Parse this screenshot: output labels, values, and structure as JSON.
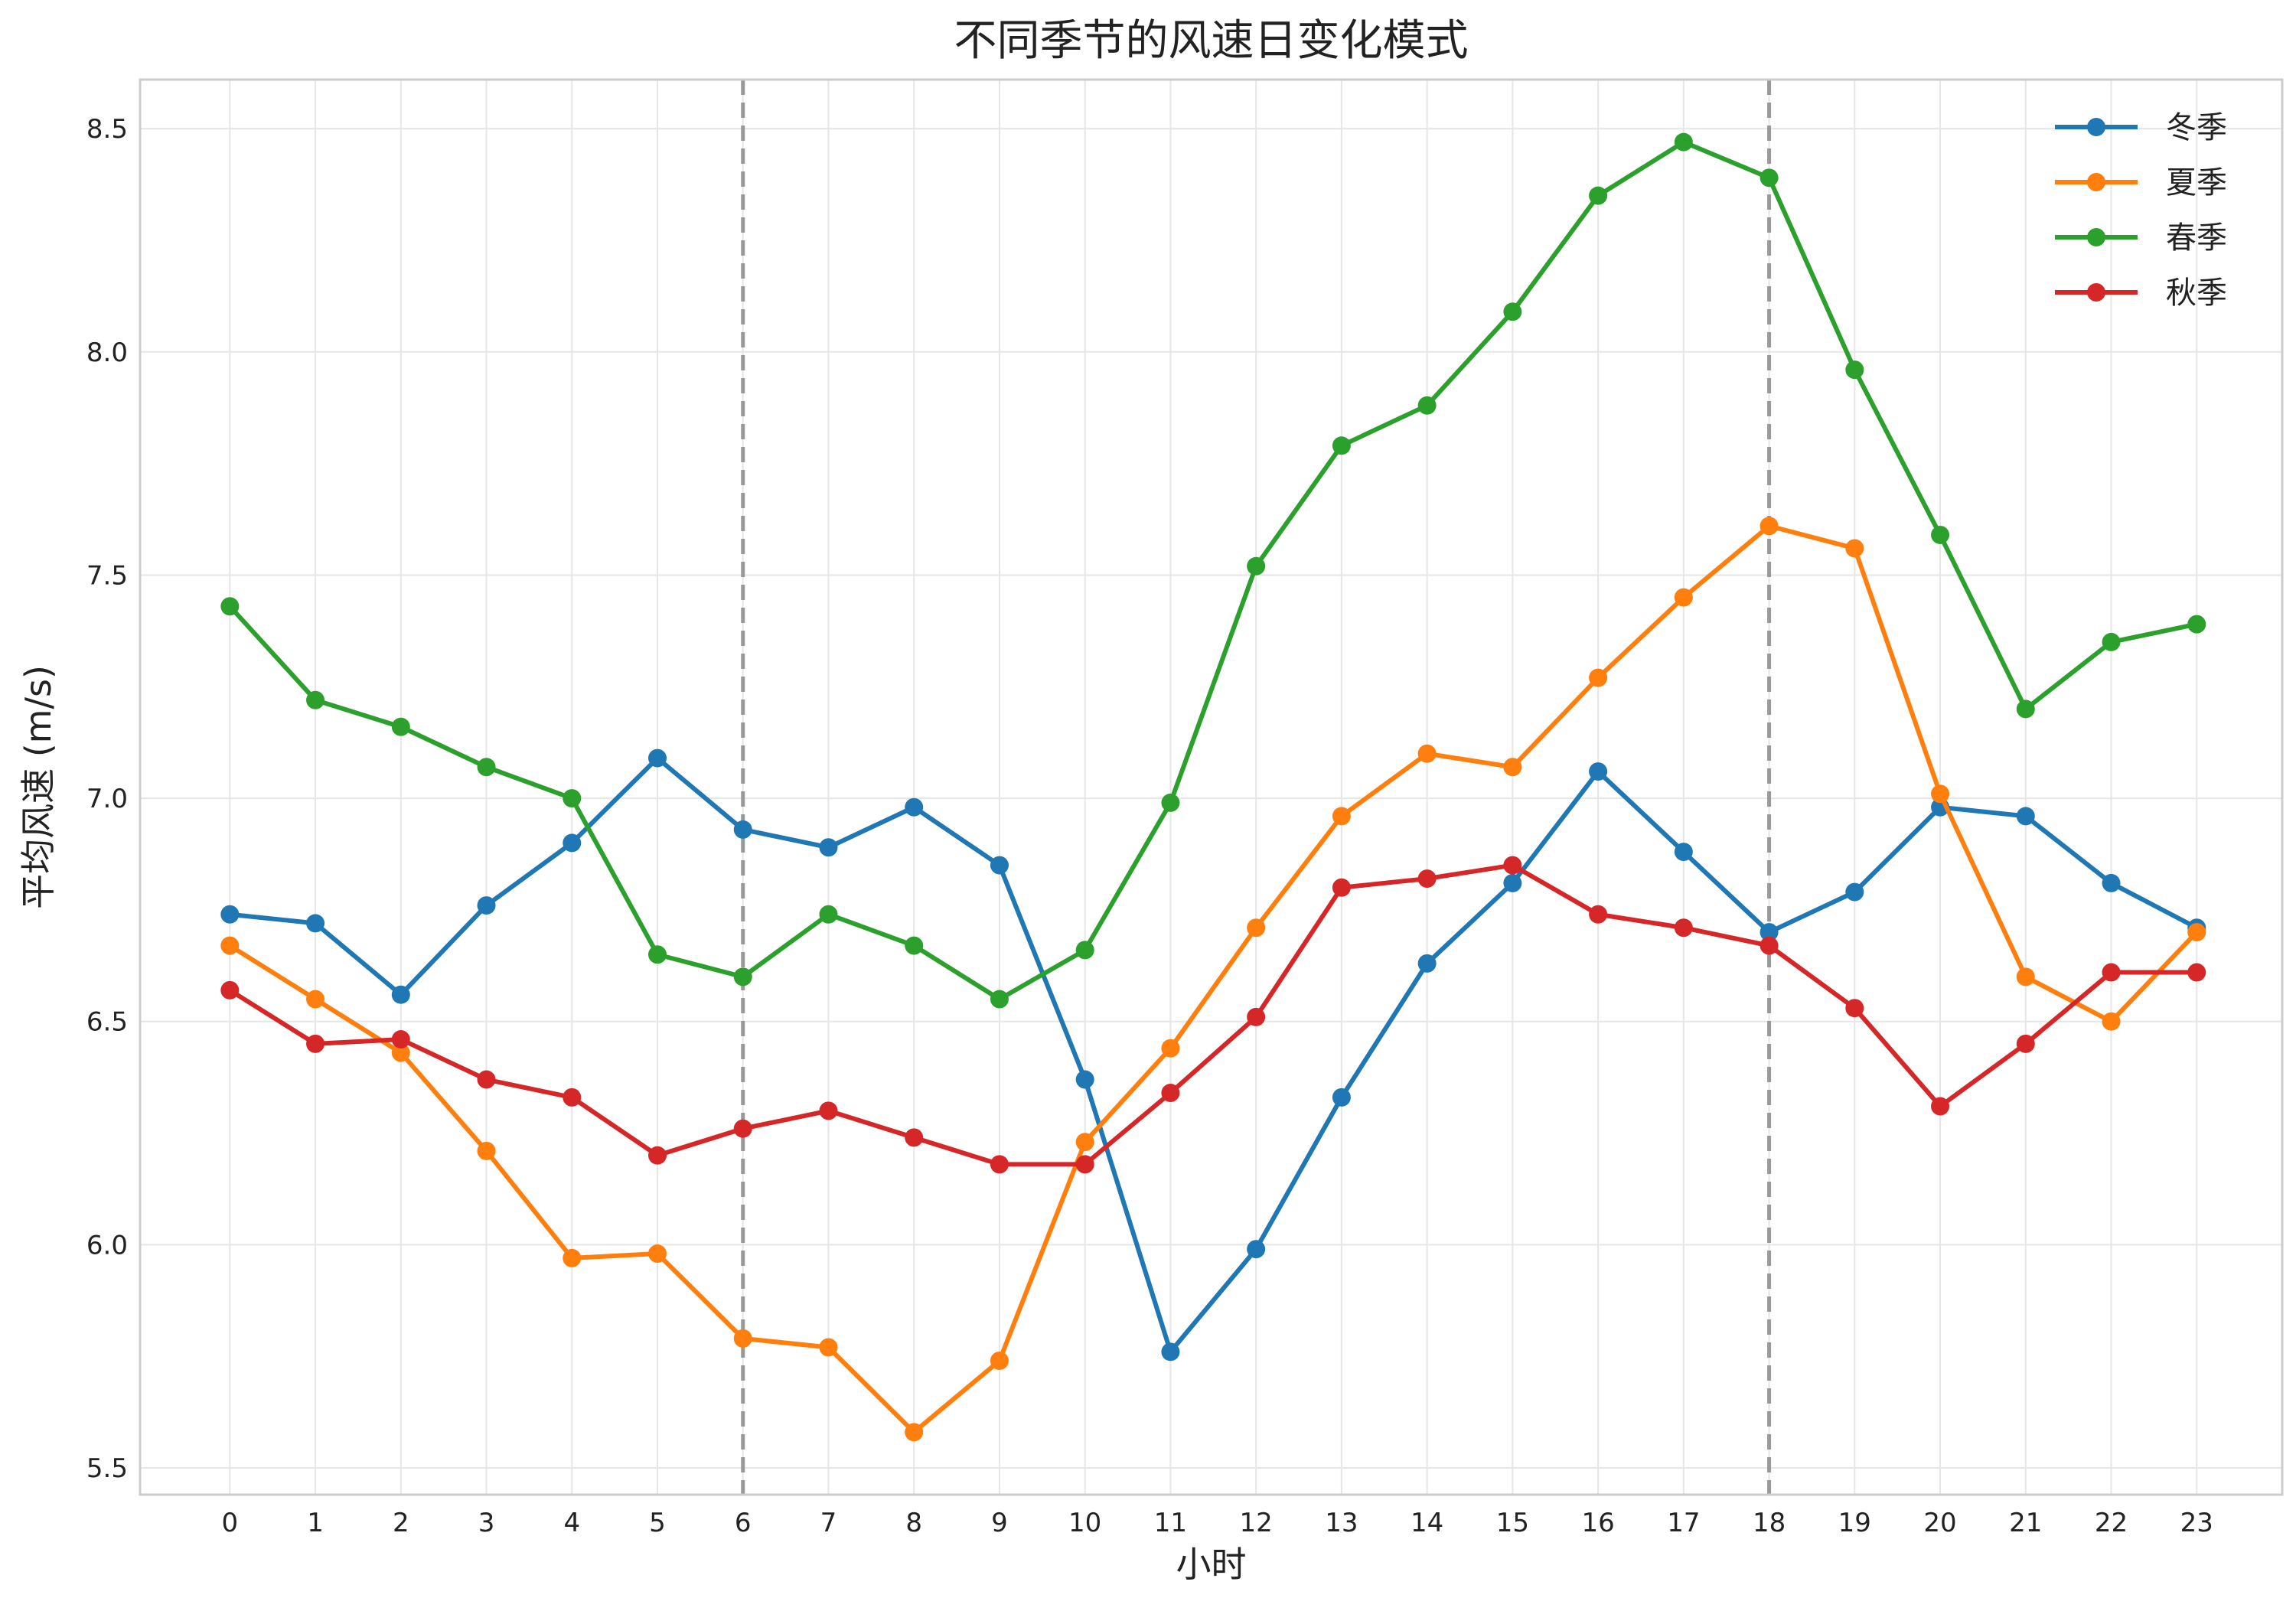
{
  "chart_data": {
    "type": "line",
    "title": "不同季节的风速日变化模式",
    "xlabel": "小时",
    "ylabel": "平均风速 (m/s)",
    "x": [
      0,
      1,
      2,
      3,
      4,
      5,
      6,
      7,
      8,
      9,
      10,
      11,
      12,
      13,
      14,
      15,
      16,
      17,
      18,
      19,
      20,
      21,
      22,
      23
    ],
    "x_tick_labels": [
      "0",
      "1",
      "2",
      "3",
      "4",
      "5",
      "6",
      "7",
      "8",
      "9",
      "10",
      "11",
      "12",
      "13",
      "14",
      "15",
      "16",
      "17",
      "18",
      "19",
      "20",
      "21",
      "22",
      "23"
    ],
    "xlim": [
      -1.05,
      24.0
    ],
    "ylim": [
      5.44,
      8.61
    ],
    "y_ticks": [
      5.5,
      6.0,
      6.5,
      7.0,
      7.5,
      8.0,
      8.5
    ],
    "y_tick_labels": [
      "5.5",
      "6.0",
      "6.5",
      "7.0",
      "7.5",
      "8.0",
      "8.5"
    ],
    "vertical_lines": [
      6,
      18
    ],
    "grid": true,
    "legend_position": "top-right",
    "series": [
      {
        "name": "冬季",
        "color": "#1f77b4",
        "values": [
          6.74,
          6.72,
          6.56,
          6.76,
          6.9,
          7.09,
          6.93,
          6.89,
          6.98,
          6.85,
          6.37,
          5.76,
          5.99,
          6.33,
          6.63,
          6.81,
          7.06,
          6.88,
          6.7,
          6.79,
          6.98,
          6.96,
          6.81,
          6.71
        ]
      },
      {
        "name": "夏季",
        "color": "#ff7f0e",
        "values": [
          6.67,
          6.55,
          6.43,
          6.21,
          5.97,
          5.98,
          5.79,
          5.77,
          5.58,
          5.74,
          6.23,
          6.44,
          6.71,
          6.96,
          7.1,
          7.07,
          7.27,
          7.45,
          7.61,
          7.56,
          7.01,
          6.6,
          6.5,
          6.7
        ]
      },
      {
        "name": "春季",
        "color": "#2ca02c",
        "values": [
          7.43,
          7.22,
          7.16,
          7.07,
          7.0,
          6.65,
          6.6,
          6.74,
          6.67,
          6.55,
          6.66,
          6.99,
          7.52,
          7.79,
          7.88,
          8.09,
          8.35,
          8.47,
          8.39,
          7.96,
          7.59,
          7.2,
          7.35,
          7.39
        ]
      },
      {
        "name": "秋季",
        "color": "#d62728",
        "values": [
          6.57,
          6.45,
          6.46,
          6.37,
          6.33,
          6.2,
          6.26,
          6.3,
          6.24,
          6.18,
          6.18,
          6.34,
          6.51,
          6.8,
          6.82,
          6.85,
          6.74,
          6.71,
          6.67,
          6.53,
          6.31,
          6.45,
          6.61,
          6.61
        ]
      }
    ]
  },
  "colors": {
    "grid": "#e6e6e6",
    "frame": "#cccccc",
    "vline": "#999999"
  }
}
